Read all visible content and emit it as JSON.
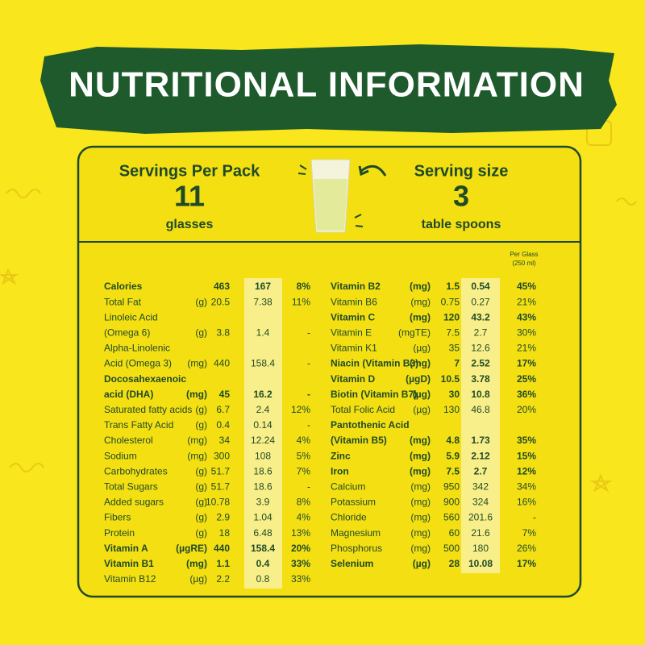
{
  "header": {
    "title": "NUTRITIONAL INFORMATION"
  },
  "servings": {
    "per_pack_label": "Servings Per Pack",
    "per_pack_value": "11",
    "per_pack_unit": "glasses",
    "size_label": "Serving size",
    "size_value": "3",
    "size_unit": "table spoons"
  },
  "per_glass_note": {
    "line1": "Per Glass",
    "line2": "(250 ml)"
  },
  "tables": [
    {
      "rows": [
        {
          "name": "Calories",
          "per_100g": "463",
          "per_glass": "167",
          "rda": "8%",
          "bold": true
        },
        {
          "name": "Total Fat",
          "unit": "(g)",
          "per_100g": "20.5",
          "per_glass": "7.38",
          "rda": "11%"
        },
        {
          "name": "Linoleic Acid"
        },
        {
          "name": "(Omega 6)",
          "unit": "(g)",
          "per_100g": "3.8",
          "per_glass": "1.4",
          "rda": "-"
        },
        {
          "name": "Alpha-Linolenic"
        },
        {
          "name": "Acid (Omega 3)",
          "unit": "(mg)",
          "per_100g": "440",
          "per_glass": "158.4",
          "rda": "-"
        },
        {
          "name": "Docosahexaenoic",
          "bold": true
        },
        {
          "name": "acid (DHA)",
          "unit": "(mg)",
          "per_100g": "45",
          "per_glass": "16.2",
          "rda": "-",
          "bold": true
        },
        {
          "name": "Saturated fatty acids",
          "unit": "(g)",
          "per_100g": "6.7",
          "per_glass": "2.4",
          "rda": "12%"
        },
        {
          "name": "Trans Fatty Acid",
          "unit": "(g)",
          "per_100g": "0.4",
          "per_glass": "0.14",
          "rda": "-"
        },
        {
          "name": "Cholesterol",
          "unit": "(mg)",
          "per_100g": "34",
          "per_glass": "12.24",
          "rda": "4%"
        },
        {
          "name": "Sodium",
          "unit": "(mg)",
          "per_100g": "300",
          "per_glass": "108",
          "rda": "5%"
        },
        {
          "name": "Carbohydrates",
          "unit": "(g)",
          "per_100g": "51.7",
          "per_glass": "18.6",
          "rda": "7%"
        },
        {
          "name": "Total Sugars",
          "unit": "(g)",
          "per_100g": "51.7",
          "per_glass": "18.6",
          "rda": "-"
        },
        {
          "name": "Added sugars",
          "unit": "(g)",
          "per_100g": "10.78",
          "per_glass": "3.9",
          "rda": "8%"
        },
        {
          "name": "Fibers",
          "unit": "(g)",
          "per_100g": "2.9",
          "per_glass": "1.04",
          "rda": "4%"
        },
        {
          "name": "Protein",
          "unit": "(g)",
          "per_100g": "18",
          "per_glass": "6.48",
          "rda": "13%"
        },
        {
          "name": "Vitamin A",
          "unit": "(µgRE)",
          "per_100g": "440",
          "per_glass": "158.4",
          "rda": "20%",
          "bold": true
        },
        {
          "name": "Vitamin B1",
          "unit": "(mg)",
          "per_100g": "1.1",
          "per_glass": "0.4",
          "rda": "33%",
          "bold": true
        },
        {
          "name": "Vitamin B12",
          "unit": "(µg)",
          "per_100g": "2.2",
          "per_glass": "0.8",
          "rda": "33%"
        }
      ]
    },
    {
      "rows": [
        {
          "name": "Vitamin B2",
          "unit": "(mg)",
          "per_100g": "1.5",
          "per_glass": "0.54",
          "rda": "45%",
          "bold": true
        },
        {
          "name": "Vitamin B6",
          "unit": "(mg)",
          "per_100g": "0.75",
          "per_glass": "0.27",
          "rda": "21%"
        },
        {
          "name": "Vitamin C",
          "unit": "(mg)",
          "per_100g": "120",
          "per_glass": "43.2",
          "rda": "43%",
          "bold": true
        },
        {
          "name": "Vitamin E",
          "unit": "(mgTE)",
          "per_100g": "7.5",
          "per_glass": "2.7",
          "rda": "30%"
        },
        {
          "name": "Vitamin K1",
          "unit": "(µg)",
          "per_100g": "35",
          "per_glass": "12.6",
          "rda": "21%"
        },
        {
          "name": "Niacin (Vitamin B3)",
          "unit": "(mg)",
          "per_100g": "7",
          "per_glass": "2.52",
          "rda": "17%",
          "bold": true
        },
        {
          "name": "Vitamin D",
          "unit": "(µgD)",
          "per_100g": "10.5",
          "per_glass": "3.78",
          "rda": "25%",
          "bold": true
        },
        {
          "name": "Biotin (Vitamin B7)",
          "unit": "(µg)",
          "per_100g": "30",
          "per_glass": "10.8",
          "rda": "36%",
          "bold": true
        },
        {
          "name": "Total Folic Acid",
          "unit": "(µg)",
          "per_100g": "130",
          "per_glass": "46.8",
          "rda": "20%"
        },
        {
          "name": "Pantothenic Acid",
          "bold": true
        },
        {
          "name": "(Vitamin B5)",
          "unit": "(mg)",
          "per_100g": "4.8",
          "per_glass": "1.73",
          "rda": "35%",
          "bold": true
        },
        {
          "name": "Zinc",
          "unit": "(mg)",
          "per_100g": "5.9",
          "per_glass": "2.12",
          "rda": "15%",
          "bold": true
        },
        {
          "name": "Iron",
          "unit": "(mg)",
          "per_100g": "7.5",
          "per_glass": "2.7",
          "rda": "12%",
          "bold": true
        },
        {
          "name": "Calcium",
          "unit": "(mg)",
          "per_100g": "950",
          "per_glass": "342",
          "rda": "34%"
        },
        {
          "name": "Potassium",
          "unit": "(mg)",
          "per_100g": "900",
          "per_glass": "324",
          "rda": "16%"
        },
        {
          "name": "Chloride",
          "unit": "(mg)",
          "per_100g": "560",
          "per_glass": "201.6",
          "rda": "-"
        },
        {
          "name": "Magnesium",
          "unit": "(mg)",
          "per_100g": "60",
          "per_glass": "21.6",
          "rda": "7%"
        },
        {
          "name": "Phosphorus",
          "unit": "(mg)",
          "per_100g": "500",
          "per_glass": "180",
          "rda": "26%"
        },
        {
          "name": "Selenium",
          "unit": "(µg)",
          "per_100g": "28",
          "per_glass": "10.08",
          "rda": "17%",
          "bold": true
        }
      ]
    }
  ]
}
